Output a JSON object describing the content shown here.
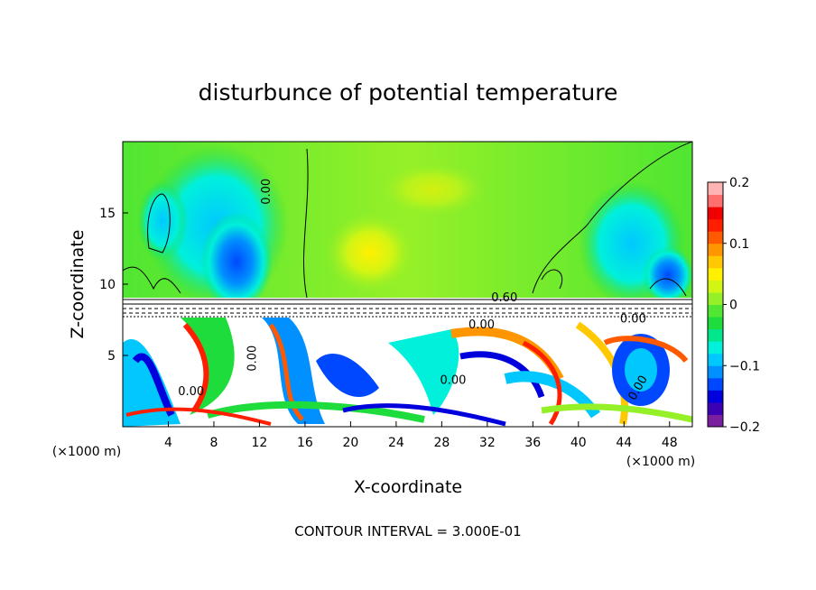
{
  "chart_data": {
    "type": "heatmap",
    "title": "disturbunce of potential temperature",
    "xlabel": "X-coordinate",
    "ylabel": "Z-coordinate",
    "x_unit_left": "(×1000 m)",
    "x_unit_right": "(×1000 m)",
    "footer": "CONTOUR INTERVAL = 3.000E-01",
    "xlim": [
      0,
      50
    ],
    "ylim": [
      0,
      20
    ],
    "x_ticks": [
      4,
      8,
      12,
      16,
      20,
      24,
      28,
      32,
      36,
      40,
      44,
      48
    ],
    "x_tick_labels": [
      "4",
      "8",
      "12",
      "16",
      "20",
      "24",
      "28",
      "32",
      "36",
      "40",
      "44",
      "48"
    ],
    "y_ticks": [
      5,
      10,
      15
    ],
    "y_tick_labels": [
      "5",
      "10",
      "15"
    ],
    "colorbar": {
      "min": -0.2,
      "max": 0.2,
      "ticks": [
        -0.2,
        -0.1,
        0,
        0.1,
        0.2
      ],
      "tick_labels": [
        "−0.2",
        "−0.1",
        "0",
        "0.1",
        "0.2"
      ],
      "colors": [
        "#7a1fa0",
        "#3c00b4",
        "#0000dc",
        "#0048ff",
        "#0090ff",
        "#00c8ff",
        "#00f0dc",
        "#00e68c",
        "#1edc3c",
        "#50e632",
        "#96f028",
        "#d2f514",
        "#fff000",
        "#ffc800",
        "#ff9600",
        "#ff5a00",
        "#ff1e00",
        "#f00000",
        "#ff6e6e",
        "#ffb4b4"
      ]
    },
    "contour_labels": [
      {
        "text": "0.00",
        "x": 12.9,
        "y": 16.5,
        "rotate": -90
      },
      {
        "text": "0.60",
        "x": 33.5,
        "y": 8.8
      },
      {
        "text": "0.00",
        "x": 44.8,
        "y": 7.3
      },
      {
        "text": "0.00",
        "x": 31.5,
        "y": 6.9
      },
      {
        "text": "0.00",
        "x": 29.0,
        "y": 3.0
      },
      {
        "text": "0.00",
        "x": 6.0,
        "y": 2.2
      },
      {
        "text": "0.00",
        "x": 45.5,
        "y": 2.6,
        "rotate": -60
      },
      {
        "text": "0.00",
        "x": 11.7,
        "y": 4.8,
        "rotate": -90
      }
    ]
  }
}
